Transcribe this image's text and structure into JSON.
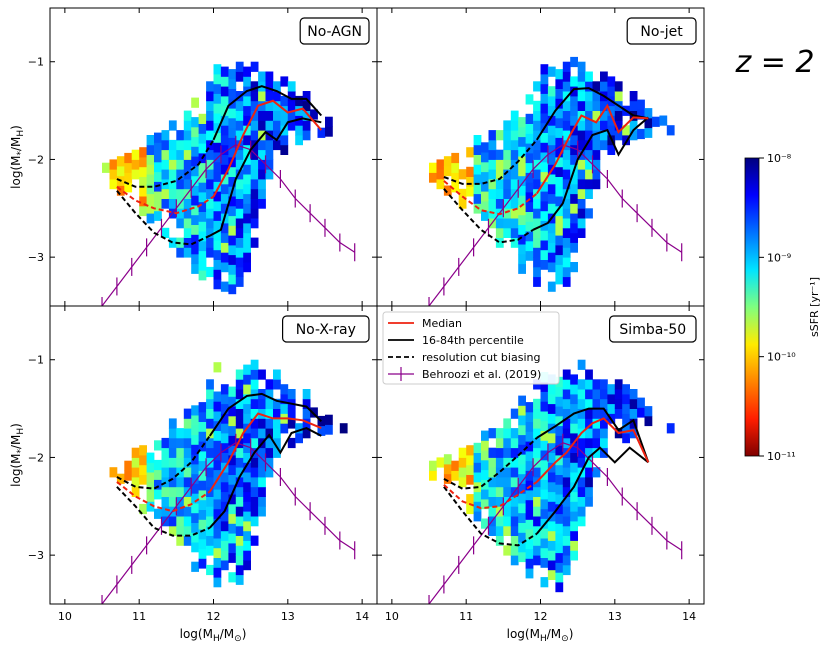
{
  "figure": {
    "redshift_label": "z = 2",
    "colorbar": {
      "label": "sSFR [yr⁻¹]",
      "scale": "log",
      "range": [
        1e-11,
        1e-08
      ],
      "tick_labels": [
        "10⁻⁸",
        "10⁻⁹",
        "10⁻¹⁰",
        "10⁻¹¹"
      ],
      "tick_values_log": [
        -8,
        -9,
        -10,
        -11
      ],
      "colormap": "jet_r"
    },
    "legend": {
      "items": [
        {
          "label": "Median",
          "color": "#ee2211",
          "style": "solid"
        },
        {
          "label": "16-84th percentile",
          "color": "#000000",
          "style": "solid"
        },
        {
          "label": "resolution cut biasing",
          "color": "#000000",
          "style": "dashed"
        },
        {
          "label": "Behroozi et al. (2019)",
          "color": "#8b008b",
          "style": "errorbar"
        }
      ]
    },
    "axes": {
      "xlabel": "log(M_H / M_⊙)",
      "ylabel": "log(M_* / M_H)",
      "xlim": [
        9.8,
        14.2
      ],
      "ylim": [
        -3.5,
        -0.45
      ],
      "x_tick_labels": [
        "10",
        "11",
        "12",
        "13",
        "14"
      ],
      "y_tick_labels": [
        "−1",
        "−2",
        "−3"
      ]
    }
  },
  "chart_data": {
    "type": "heatmap",
    "title": "",
    "panels": [
      {
        "name": "No-AGN",
        "median": {
          "x": [
            10.7,
            10.95,
            11.2,
            11.5,
            11.8,
            12.0,
            12.2,
            12.4,
            12.6,
            12.8,
            13.0,
            13.2,
            13.45
          ],
          "y": [
            -2.28,
            -2.42,
            -2.5,
            -2.55,
            -2.48,
            -2.38,
            -2.1,
            -1.75,
            -1.45,
            -1.4,
            -1.52,
            -1.48,
            -1.7
          ]
        },
        "upper": {
          "x": [
            10.7,
            10.95,
            11.2,
            11.5,
            11.8,
            12.0,
            12.2,
            12.45,
            12.65,
            12.85,
            13.05,
            13.25,
            13.45
          ],
          "y": [
            -2.2,
            -2.28,
            -2.28,
            -2.22,
            -2.05,
            -1.8,
            -1.45,
            -1.3,
            -1.25,
            -1.3,
            -1.38,
            -1.38,
            -1.55
          ]
        },
        "lower": {
          "x": [
            10.7,
            10.95,
            11.2,
            11.45,
            11.7,
            11.95,
            12.1,
            12.3,
            12.5,
            12.7,
            12.85,
            13.0,
            13.2,
            13.45
          ],
          "y": [
            -2.32,
            -2.55,
            -2.75,
            -2.85,
            -2.87,
            -2.78,
            -2.72,
            -2.2,
            -1.9,
            -1.72,
            -1.8,
            -1.62,
            -1.58,
            -1.62
          ]
        },
        "cut_index": 5
      },
      {
        "name": "No-jet",
        "median": {
          "x": [
            10.7,
            10.95,
            11.2,
            11.45,
            11.7,
            11.95,
            12.2,
            12.4,
            12.55,
            12.75,
            12.9,
            13.05,
            13.25,
            13.45
          ],
          "y": [
            -2.22,
            -2.38,
            -2.52,
            -2.56,
            -2.5,
            -2.35,
            -2.05,
            -1.75,
            -1.55,
            -1.62,
            -1.45,
            -1.72,
            -1.57,
            -1.58
          ]
        },
        "upper": {
          "x": [
            10.7,
            10.95,
            11.2,
            11.45,
            11.7,
            11.95,
            12.2,
            12.45,
            12.65,
            12.85,
            13.05,
            13.25,
            13.45
          ],
          "y": [
            -2.18,
            -2.25,
            -2.25,
            -2.2,
            -2.02,
            -1.8,
            -1.5,
            -1.28,
            -1.27,
            -1.35,
            -1.45,
            -1.55,
            -1.58
          ]
        },
        "lower": {
          "x": [
            10.7,
            10.95,
            11.2,
            11.45,
            11.7,
            11.9,
            12.1,
            12.3,
            12.5,
            12.7,
            12.9,
            13.05,
            13.25,
            13.45
          ],
          "y": [
            -2.3,
            -2.52,
            -2.72,
            -2.85,
            -2.82,
            -2.72,
            -2.65,
            -2.45,
            -2.0,
            -1.75,
            -1.7,
            -1.95,
            -1.7,
            -1.57
          ]
        },
        "cut_index": 5
      },
      {
        "name": "No-X-ray",
        "median": {
          "x": [
            10.7,
            10.95,
            11.2,
            11.45,
            11.7,
            11.95,
            12.2,
            12.4,
            12.6,
            12.8,
            13.0,
            13.2,
            13.45
          ],
          "y": [
            -2.25,
            -2.4,
            -2.5,
            -2.55,
            -2.48,
            -2.35,
            -2.05,
            -1.75,
            -1.55,
            -1.6,
            -1.6,
            -1.62,
            -1.7
          ]
        },
        "upper": {
          "x": [
            10.7,
            10.95,
            11.2,
            11.45,
            11.7,
            11.95,
            12.2,
            12.45,
            12.65,
            12.85,
            13.05,
            13.25,
            13.45
          ],
          "y": [
            -2.2,
            -2.3,
            -2.32,
            -2.22,
            -2.05,
            -1.78,
            -1.5,
            -1.37,
            -1.35,
            -1.42,
            -1.45,
            -1.48,
            -1.63
          ]
        },
        "lower": {
          "x": [
            10.7,
            10.95,
            11.2,
            11.45,
            11.7,
            11.95,
            12.15,
            12.35,
            12.55,
            12.75,
            12.9,
            13.05,
            13.25,
            13.45
          ],
          "y": [
            -2.3,
            -2.5,
            -2.72,
            -2.8,
            -2.8,
            -2.72,
            -2.55,
            -2.2,
            -1.95,
            -1.77,
            -1.95,
            -1.75,
            -1.7,
            -1.78
          ]
        },
        "cut_index": 5
      },
      {
        "name": "Simba-50",
        "median": {
          "x": [
            10.7,
            10.95,
            11.2,
            11.45,
            11.7,
            11.95,
            12.2,
            12.35,
            12.55,
            12.7,
            12.85,
            13.05,
            13.25,
            13.45
          ],
          "y": [
            -2.28,
            -2.45,
            -2.52,
            -2.5,
            -2.38,
            -2.25,
            -2.05,
            -1.95,
            -1.75,
            -1.65,
            -1.6,
            -1.75,
            -1.72,
            -2.05
          ]
        },
        "upper": {
          "x": [
            10.7,
            10.95,
            11.2,
            11.45,
            11.7,
            11.95,
            12.2,
            12.45,
            12.65,
            12.85,
            13.05,
            13.25,
            13.45
          ],
          "y": [
            -2.22,
            -2.32,
            -2.3,
            -2.15,
            -1.98,
            -1.8,
            -1.68,
            -1.55,
            -1.5,
            -1.5,
            -1.72,
            -1.62,
            -2.05
          ]
        },
        "lower": {
          "x": [
            10.7,
            10.95,
            11.2,
            11.45,
            11.7,
            11.95,
            12.2,
            12.45,
            12.65,
            12.8,
            13.0,
            13.2,
            13.45
          ],
          "y": [
            -2.3,
            -2.55,
            -2.78,
            -2.88,
            -2.9,
            -2.78,
            -2.55,
            -2.3,
            -2.0,
            -1.9,
            -2.05,
            -1.9,
            -2.05
          ]
        },
        "cut_index": 5
      }
    ],
    "behroozi": {
      "x": [
        10.5,
        10.7,
        10.9,
        11.1,
        11.3,
        11.5,
        11.7,
        11.9,
        12.1,
        12.3,
        12.5,
        12.7,
        12.9,
        13.1,
        13.3,
        13.5,
        13.7,
        13.9
      ],
      "y": [
        -3.5,
        -3.3,
        -3.1,
        -2.9,
        -2.7,
        -2.5,
        -2.3,
        -2.1,
        -1.95,
        -1.85,
        -1.9,
        -2.05,
        -2.2,
        -2.4,
        -2.55,
        -2.7,
        -2.85,
        -2.95
      ]
    },
    "density": {
      "note": "2D histogram of halos colored by sSFR; generated procedurally from density envelope",
      "x_bin": 0.1,
      "y_bin": 0.1,
      "lower_edge": [
        [
          10.3,
          -2.1
        ],
        [
          10.9,
          -2.5
        ],
        [
          11.3,
          -2.8
        ],
        [
          11.6,
          -3.1
        ],
        [
          11.9,
          -3.3
        ],
        [
          12.3,
          -3.4
        ],
        [
          12.5,
          -2.9
        ],
        [
          12.8,
          -2.0
        ],
        [
          13.2,
          -1.8
        ],
        [
          13.6,
          -1.75
        ]
      ],
      "upper_edge": [
        [
          10.3,
          -2.2
        ],
        [
          10.8,
          -1.95
        ],
        [
          11.2,
          -1.8
        ],
        [
          11.5,
          -1.6
        ],
        [
          11.8,
          -1.35
        ],
        [
          12.0,
          -1.1
        ],
        [
          12.4,
          -1.05
        ],
        [
          12.8,
          -1.2
        ],
        [
          13.2,
          -1.35
        ],
        [
          13.6,
          -1.65
        ]
      ]
    }
  }
}
